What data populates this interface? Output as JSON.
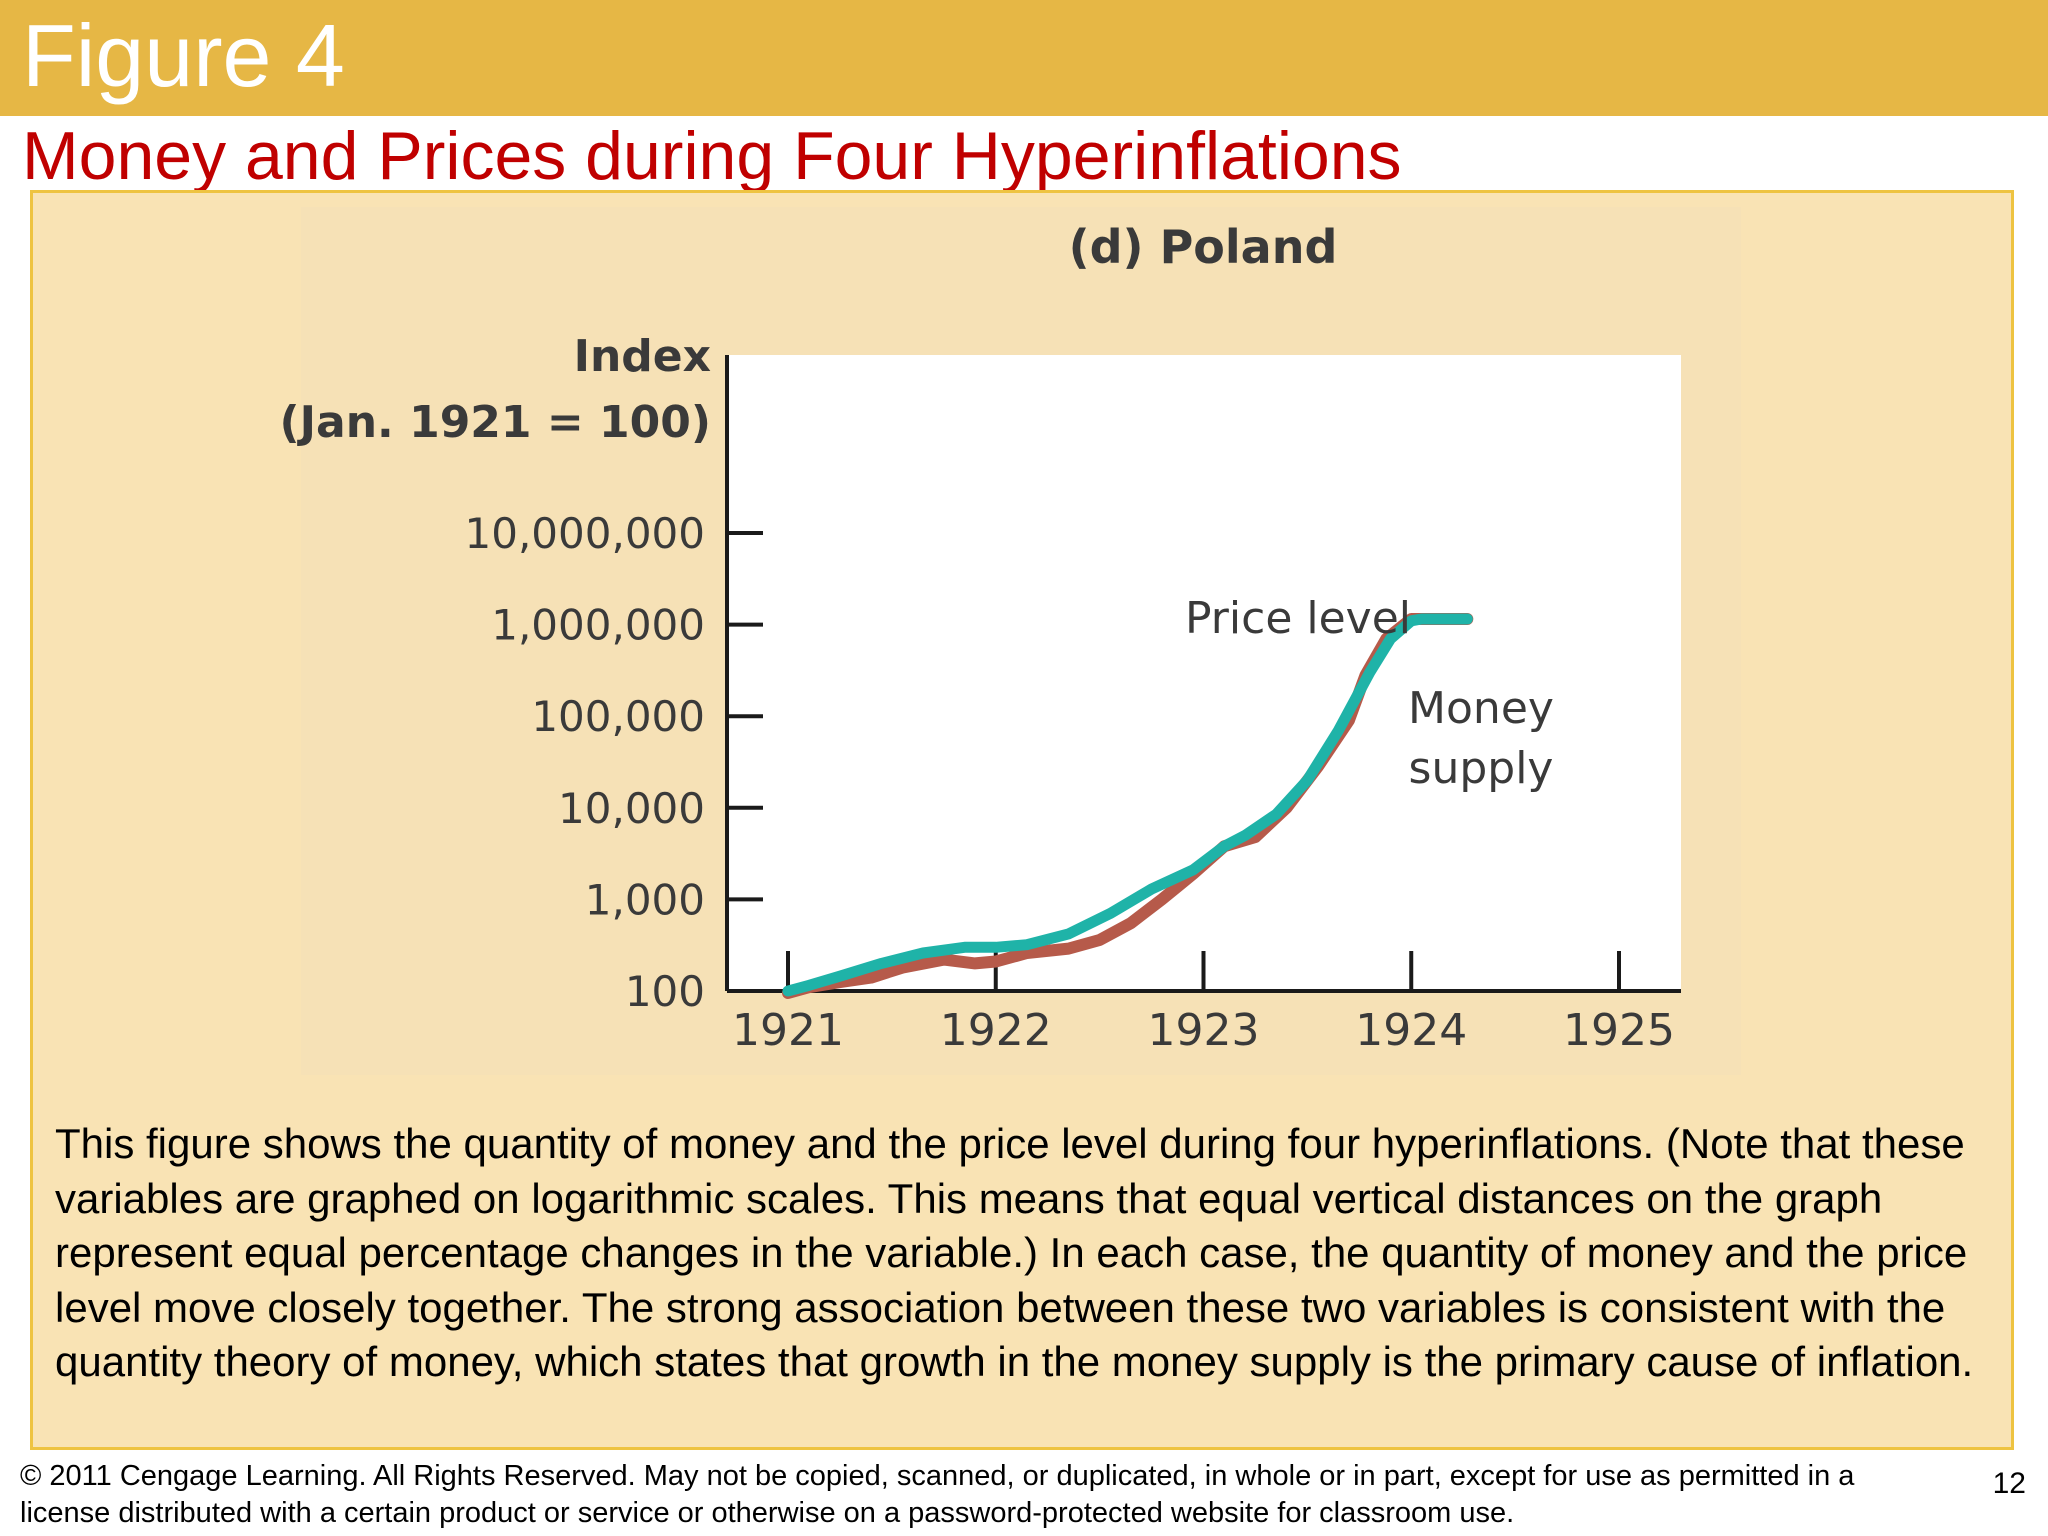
{
  "slide": {
    "title": "Figure 4",
    "subtitle": "Money and Prices during Four Hyperinflations",
    "caption": "This figure shows the quantity of money and the price level during four hyperinflations. (Note that these variables are graphed on logarithmic scales. This means that equal vertical distances on the graph represent equal percentage changes in the variable.) In each case, the quantity of money and the price level move closely together. The strong association between these two variables is consistent with the quantity theory of money, which states that growth in the money supply is the primary cause of inflation.",
    "copyright": "© 2011 Cengage Learning. All Rights Reserved. May not be copied, scanned, or duplicated, in whole or in part, except for use as permitted in a license distributed with a certain product or service or otherwise on a password-protected website for classroom use.",
    "page_number": "12"
  },
  "colors": {
    "header": "#e6b745",
    "subtitle": "#c00000",
    "panel": "#f9e3b4",
    "panel_border": "#eec341",
    "price_level": "#b65a4a",
    "money_supply": "#1fb3a8",
    "axis": "#1a1a1a",
    "axis_text": "#3a3a3a"
  },
  "chart_data": {
    "type": "line",
    "title": "(d) Poland",
    "ylabel_line1": "Index",
    "ylabel_line2": "(Jan. 1921 = 100)",
    "xlabel": "",
    "y_scale": "log",
    "ylim": [
      100,
      10000000
    ],
    "xlim": [
      1920.7,
      1925.3
    ],
    "y_ticks": [
      100,
      1000,
      10000,
      100000,
      1000000,
      10000000
    ],
    "y_tick_labels": [
      "100",
      "1,000",
      "10,000",
      "100,000",
      "1,000,000",
      "10,000,000"
    ],
    "x_ticks": [
      1921,
      1922,
      1923,
      1924,
      1925
    ],
    "x_tick_labels": [
      "1921",
      "1922",
      "1923",
      "1924",
      "1925"
    ],
    "grid": false,
    "series": [
      {
        "name": "Price level",
        "label_lines": [
          "Price level"
        ],
        "x": [
          1921.0,
          1921.1,
          1921.25,
          1921.4,
          1921.55,
          1921.75,
          1921.9,
          1922.0,
          1922.15,
          1922.35,
          1922.5,
          1922.65,
          1922.8,
          1922.95,
          1923.1,
          1923.25,
          1923.4,
          1923.55,
          1923.7,
          1923.78,
          1923.88,
          1924.0,
          1924.08,
          1924.2,
          1924.27
        ],
        "y": [
          95,
          110,
          125,
          140,
          180,
          220,
          200,
          210,
          260,
          290,
          360,
          550,
          1000,
          1900,
          3800,
          4800,
          10000,
          28000,
          90000,
          280000,
          700000,
          1150000,
          1150000,
          1150000,
          1150000
        ]
      },
      {
        "name": "Money supply",
        "label_lines": [
          "Money",
          "supply"
        ],
        "x": [
          1921.0,
          1921.1,
          1921.25,
          1921.45,
          1921.65,
          1921.85,
          1922.0,
          1922.15,
          1922.35,
          1922.55,
          1922.75,
          1922.95,
          1923.1,
          1923.2,
          1923.35,
          1923.5,
          1923.65,
          1923.8,
          1923.9,
          1924.0,
          1924.05,
          1924.15,
          1924.27
        ],
        "y": [
          100,
          115,
          145,
          200,
          260,
          300,
          300,
          320,
          420,
          700,
          1300,
          2100,
          3800,
          5000,
          8500,
          20000,
          70000,
          300000,
          700000,
          1100000,
          1150000,
          1150000,
          1150000
        ]
      }
    ]
  }
}
